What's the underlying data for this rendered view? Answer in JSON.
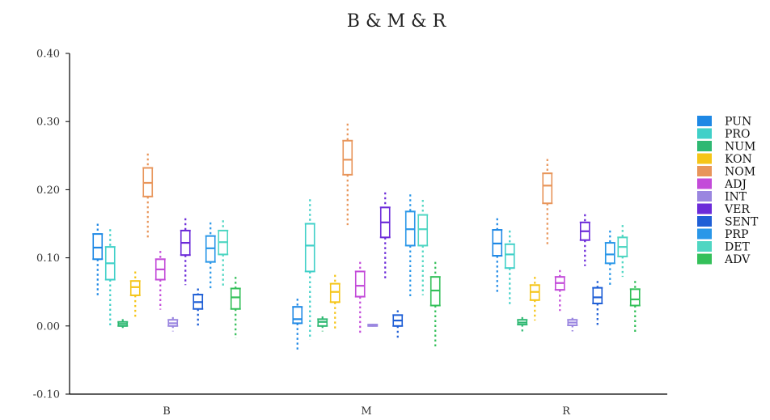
{
  "chart_data": {
    "type": "box",
    "title": "B & M & R",
    "xlabel": "",
    "ylabel": "",
    "categories": [
      "B",
      "M",
      "R"
    ],
    "ylim": [
      -0.1,
      0.4
    ],
    "yticks": [
      "-0.10",
      "0.00",
      "0.10",
      "0.20",
      "0.30",
      "0.40"
    ],
    "ytick_values": [
      -0.1,
      0.0,
      0.1,
      0.2,
      0.3,
      0.4
    ],
    "legend_position": "right",
    "grid": false,
    "series": [
      {
        "name": "PUN",
        "color": "#1e88e5",
        "boxes": [
          {
            "whislo": 0.045,
            "q1": 0.098,
            "med": 0.115,
            "q3": 0.135,
            "whishi": 0.15
          },
          {
            "whislo": -0.037,
            "q1": 0.004,
            "med": 0.01,
            "q3": 0.028,
            "whishi": 0.04
          },
          {
            "whislo": 0.048,
            "q1": 0.103,
            "med": 0.121,
            "q3": 0.141,
            "whishi": 0.158
          }
        ]
      },
      {
        "name": "PRO",
        "color": "#40d0c8",
        "boxes": [
          {
            "whislo": -0.003,
            "q1": 0.068,
            "med": 0.092,
            "q3": 0.116,
            "whishi": 0.142
          },
          {
            "whislo": -0.02,
            "q1": 0.08,
            "med": 0.118,
            "q3": 0.15,
            "whishi": 0.186
          },
          {
            "whislo": 0.032,
            "q1": 0.085,
            "med": 0.105,
            "q3": 0.12,
            "whishi": 0.14
          }
        ]
      },
      {
        "name": "NUM",
        "color": "#2eb872",
        "boxes": [
          {
            "whislo": -0.005,
            "q1": 0.0,
            "med": 0.003,
            "q3": 0.006,
            "whishi": 0.01
          },
          {
            "whislo": -0.008,
            "q1": 0.0,
            "med": 0.006,
            "q3": 0.01,
            "whishi": 0.014
          },
          {
            "whislo": -0.008,
            "q1": 0.002,
            "med": 0.005,
            "q3": 0.009,
            "whishi": 0.013
          }
        ]
      },
      {
        "name": "KON",
        "color": "#f5c518",
        "boxes": [
          {
            "whislo": 0.01,
            "q1": 0.045,
            "med": 0.057,
            "q3": 0.066,
            "whishi": 0.08
          },
          {
            "whislo": -0.004,
            "q1": 0.035,
            "med": 0.05,
            "q3": 0.062,
            "whishi": 0.075
          },
          {
            "whislo": 0.008,
            "q1": 0.038,
            "med": 0.05,
            "q3": 0.06,
            "whishi": 0.072
          }
        ]
      },
      {
        "name": "NOM",
        "color": "#e8955a",
        "boxes": [
          {
            "whislo": 0.13,
            "q1": 0.19,
            "med": 0.21,
            "q3": 0.232,
            "whishi": 0.253
          },
          {
            "whislo": 0.148,
            "q1": 0.222,
            "med": 0.244,
            "q3": 0.272,
            "whishi": 0.297
          },
          {
            "whislo": 0.117,
            "q1": 0.18,
            "med": 0.206,
            "q3": 0.224,
            "whishi": 0.245
          }
        ]
      },
      {
        "name": "ADJ",
        "color": "#c34bd9",
        "boxes": [
          {
            "whislo": 0.024,
            "q1": 0.068,
            "med": 0.083,
            "q3": 0.098,
            "whishi": 0.11
          },
          {
            "whislo": -0.013,
            "q1": 0.043,
            "med": 0.059,
            "q3": 0.08,
            "whishi": 0.094
          },
          {
            "whislo": 0.022,
            "q1": 0.053,
            "med": 0.063,
            "q3": 0.072,
            "whishi": 0.082
          }
        ]
      },
      {
        "name": "INT",
        "color": "#9a86e0",
        "boxes": [
          {
            "whislo": -0.008,
            "q1": 0.0,
            "med": 0.004,
            "q3": 0.009,
            "whishi": 0.013
          },
          {
            "whislo": -0.001,
            "q1": 0.0,
            "med": 0.001,
            "q3": 0.002,
            "whishi": 0.003
          },
          {
            "whislo": -0.008,
            "q1": 0.001,
            "med": 0.005,
            "q3": 0.009,
            "whishi": 0.012
          }
        ]
      },
      {
        "name": "VER",
        "color": "#6c2bd9",
        "boxes": [
          {
            "whislo": 0.06,
            "q1": 0.104,
            "med": 0.122,
            "q3": 0.14,
            "whishi": 0.158
          },
          {
            "whislo": 0.068,
            "q1": 0.13,
            "med": 0.152,
            "q3": 0.174,
            "whishi": 0.196
          },
          {
            "whislo": 0.088,
            "q1": 0.126,
            "med": 0.139,
            "q3": 0.152,
            "whishi": 0.164
          }
        ]
      },
      {
        "name": "SENT",
        "color": "#1f5fd6",
        "boxes": [
          {
            "whislo": 0.0,
            "q1": 0.025,
            "med": 0.035,
            "q3": 0.046,
            "whishi": 0.055
          },
          {
            "whislo": -0.02,
            "q1": 0.0,
            "med": 0.008,
            "q3": 0.016,
            "whishi": 0.023
          },
          {
            "whislo": -0.001,
            "q1": 0.033,
            "med": 0.042,
            "q3": 0.056,
            "whishi": 0.066
          }
        ]
      },
      {
        "name": "PRP",
        "color": "#2a97e8",
        "boxes": [
          {
            "whislo": 0.055,
            "q1": 0.094,
            "med": 0.114,
            "q3": 0.132,
            "whishi": 0.152
          },
          {
            "whislo": 0.042,
            "q1": 0.118,
            "med": 0.142,
            "q3": 0.168,
            "whishi": 0.193
          },
          {
            "whislo": 0.058,
            "q1": 0.092,
            "med": 0.105,
            "q3": 0.122,
            "whishi": 0.14
          }
        ]
      },
      {
        "name": "DET",
        "color": "#4fd6c2",
        "boxes": [
          {
            "whislo": 0.058,
            "q1": 0.105,
            "med": 0.123,
            "q3": 0.14,
            "whishi": 0.155
          },
          {
            "whislo": 0.045,
            "q1": 0.118,
            "med": 0.142,
            "q3": 0.163,
            "whishi": 0.185
          },
          {
            "whislo": 0.072,
            "q1": 0.102,
            "med": 0.116,
            "q3": 0.13,
            "whishi": 0.148
          }
        ]
      },
      {
        "name": "ADV",
        "color": "#34c05a",
        "boxes": [
          {
            "whislo": -0.018,
            "q1": 0.025,
            "med": 0.042,
            "q3": 0.055,
            "whishi": 0.072
          },
          {
            "whislo": -0.03,
            "q1": 0.03,
            "med": 0.052,
            "q3": 0.072,
            "whishi": 0.094
          },
          {
            "whislo": -0.01,
            "q1": 0.03,
            "med": 0.039,
            "q3": 0.054,
            "whishi": 0.066
          }
        ]
      }
    ]
  }
}
